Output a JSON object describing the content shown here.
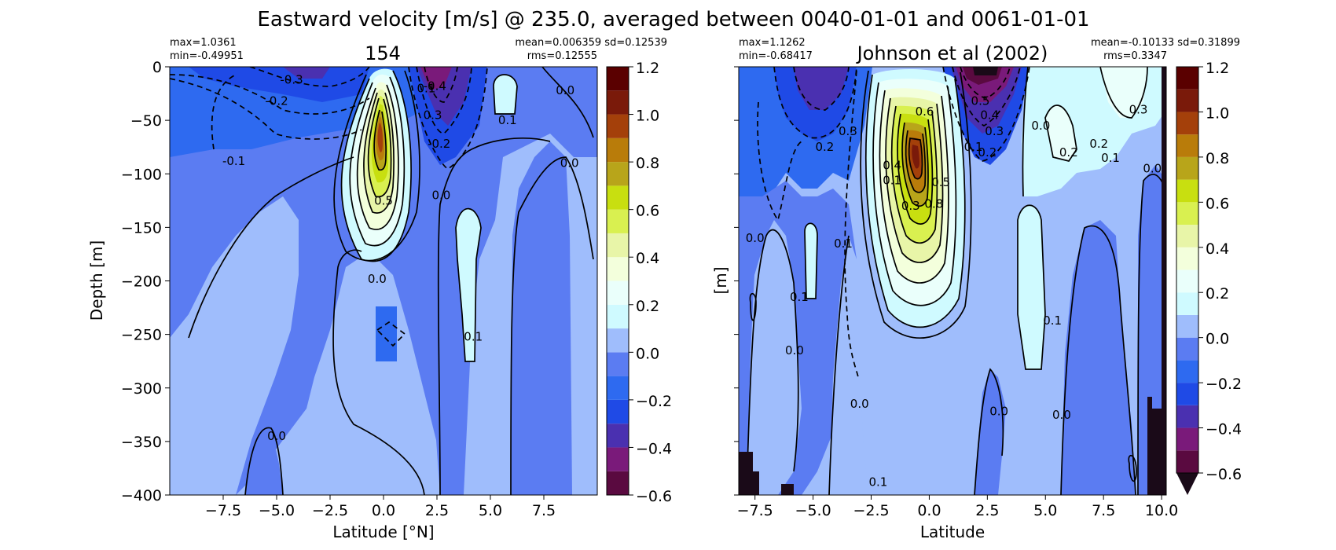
{
  "figure": {
    "suptitle": "Eastward velocity [m/s] @ 235.0, averaged between 0040-01-01 and 0061-01-01"
  },
  "colorbar": {
    "levels": [
      -0.6,
      -0.5,
      -0.4,
      -0.3,
      -0.2,
      -0.1,
      0.0,
      0.1,
      0.2,
      0.3,
      0.4,
      0.5,
      0.6,
      0.7,
      0.8,
      0.9,
      1.0,
      1.1,
      1.2
    ],
    "colors": [
      "#5a0a40",
      "#7a1a7a",
      "#4a30b0",
      "#1f4ae6",
      "#2e6af0",
      "#5b7cf2",
      "#9fbdfc",
      "#cffaff",
      "#eafffb",
      "#f3ffdc",
      "#e8f5a8",
      "#d9f050",
      "#c8df10",
      "#b8a51a",
      "#b97c0a",
      "#a4400a",
      "#7a1a0a",
      "#5a0000"
    ],
    "ticks": [
      "1.2",
      "1.0",
      "0.8",
      "0.6",
      "0.4",
      "0.2",
      "0.0",
      "−0.2",
      "−0.4",
      "−0.6"
    ]
  },
  "chart_data": [
    {
      "type": "heatmap",
      "title": "154",
      "stats_left": [
        "max=1.0361",
        "min=-0.49951"
      ],
      "stats_right": [
        "mean=0.006359 sd=0.12539",
        "rms=0.12555"
      ],
      "xlabel": "Latitude [°N]",
      "ylabel": "Depth [m]",
      "xlim": [
        -10,
        10
      ],
      "ylim": [
        -400,
        0
      ],
      "xticks": [
        "−7.5",
        "−5.0",
        "−2.5",
        "0.0",
        "2.5",
        "5.0",
        "7.5"
      ],
      "xtick_values": [
        -7.5,
        -5.0,
        -2.5,
        0.0,
        2.5,
        5.0,
        7.5
      ],
      "yticks": [
        "0",
        "−50",
        "−100",
        "−150",
        "−200",
        "−250",
        "−300",
        "−350",
        "−400"
      ],
      "ytick_values": [
        0,
        -50,
        -100,
        -150,
        -200,
        -250,
        -300,
        -350,
        -400
      ],
      "contour_labels": [
        {
          "text": "-0.3",
          "lat": -4.3,
          "depth": -12
        },
        {
          "text": "-0.2",
          "lat": -5.0,
          "depth": -32
        },
        {
          "text": "-0.1",
          "lat": -7.0,
          "depth": -88
        },
        {
          "text": "0.1",
          "lat": 2.0,
          "depth": -20
        },
        {
          "text": "-0.4",
          "lat": 2.4,
          "depth": -18
        },
        {
          "text": "0.1",
          "lat": 5.8,
          "depth": -50
        },
        {
          "text": "0.0",
          "lat": 8.5,
          "depth": -22
        },
        {
          "text": "0.3",
          "lat": 2.3,
          "depth": -45
        },
        {
          "text": "-0.2",
          "lat": 2.6,
          "depth": -72
        },
        {
          "text": "0.0",
          "lat": 8.7,
          "depth": -90
        },
        {
          "text": "0.5",
          "lat": 0.0,
          "depth": -125
        },
        {
          "text": "0.0",
          "lat": 2.7,
          "depth": -120
        },
        {
          "text": "0.0",
          "lat": -0.3,
          "depth": -198
        },
        {
          "text": "0.1",
          "lat": 4.2,
          "depth": -252
        },
        {
          "text": "0.0",
          "lat": -5.0,
          "depth": -345
        }
      ],
      "core": {
        "lat": -0.3,
        "depth": -80,
        "max": 1.0361
      },
      "undercurrent": {
        "lat": 2.0,
        "depth": -10,
        "min": -0.49951
      }
    },
    {
      "type": "heatmap",
      "title": "Johnson et al (2002)",
      "stats_left": [
        "max=1.1262",
        "min=-0.68417"
      ],
      "stats_right": [
        "mean=-0.10133 sd=0.31899",
        "rms=0.3347"
      ],
      "xlabel": "Latitude",
      "ylabel": "[m]",
      "xlim": [
        -8.2,
        10.2
      ],
      "ylim": [
        -400,
        0
      ],
      "xticks": [
        "−7.5",
        "−5.0",
        "−2.5",
        "0.0",
        "2.5",
        "5.0",
        "7.5",
        "10.0"
      ],
      "xtick_values": [
        -7.5,
        -5.0,
        -2.5,
        0.0,
        2.5,
        5.0,
        7.5,
        10.0
      ],
      "yticks": [],
      "ytick_values": [
        0,
        -50,
        -100,
        -150,
        -200,
        -250,
        -300,
        -350,
        -400
      ],
      "contour_labels": [
        {
          "text": "0.3",
          "lat": -3.5,
          "depth": -60
        },
        {
          "text": "0.2",
          "lat": -4.5,
          "depth": -75
        },
        {
          "text": "0.6",
          "lat": -0.2,
          "depth": -42
        },
        {
          "text": "0.5",
          "lat": 2.2,
          "depth": -32
        },
        {
          "text": "0.4",
          "lat": 2.6,
          "depth": -45
        },
        {
          "text": "0.3",
          "lat": 2.8,
          "depth": -60
        },
        {
          "text": "0.2",
          "lat": 2.5,
          "depth": -80
        },
        {
          "text": "0.1",
          "lat": 1.9,
          "depth": -75
        },
        {
          "text": "0.0",
          "lat": 4.8,
          "depth": -55
        },
        {
          "text": "0.3",
          "lat": 9.0,
          "depth": -40
        },
        {
          "text": "0.2",
          "lat": 6.0,
          "depth": -80
        },
        {
          "text": "0.2",
          "lat": 7.3,
          "depth": -72
        },
        {
          "text": "0.1",
          "lat": 7.8,
          "depth": -85
        },
        {
          "text": "0.0",
          "lat": 9.6,
          "depth": -95
        },
        {
          "text": "0.4",
          "lat": -1.6,
          "depth": -92
        },
        {
          "text": "0.1",
          "lat": -1.6,
          "depth": -106
        },
        {
          "text": "0.5",
          "lat": 0.5,
          "depth": -108
        },
        {
          "text": "0.8",
          "lat": 0.2,
          "depth": -128
        },
        {
          "text": "0.3",
          "lat": -0.8,
          "depth": -130
        },
        {
          "text": "0.1",
          "lat": -3.7,
          "depth": -165
        },
        {
          "text": "0.0",
          "lat": -7.5,
          "depth": -160
        },
        {
          "text": "0.1",
          "lat": -5.6,
          "depth": -215
        },
        {
          "text": "0.0",
          "lat": -5.8,
          "depth": -265
        },
        {
          "text": "0.1",
          "lat": 5.3,
          "depth": -237
        },
        {
          "text": "0.0",
          "lat": -3.0,
          "depth": -315
        },
        {
          "text": "0.0",
          "lat": 3.0,
          "depth": -322
        },
        {
          "text": "0.0",
          "lat": 5.7,
          "depth": -325
        },
        {
          "text": "0.1",
          "lat": -2.2,
          "depth": -388
        }
      ],
      "core": {
        "lat": -0.2,
        "depth": -82,
        "max": 1.1262
      },
      "undercurrent": {
        "lat": 2.5,
        "depth": -8,
        "min": -0.68417
      }
    }
  ]
}
